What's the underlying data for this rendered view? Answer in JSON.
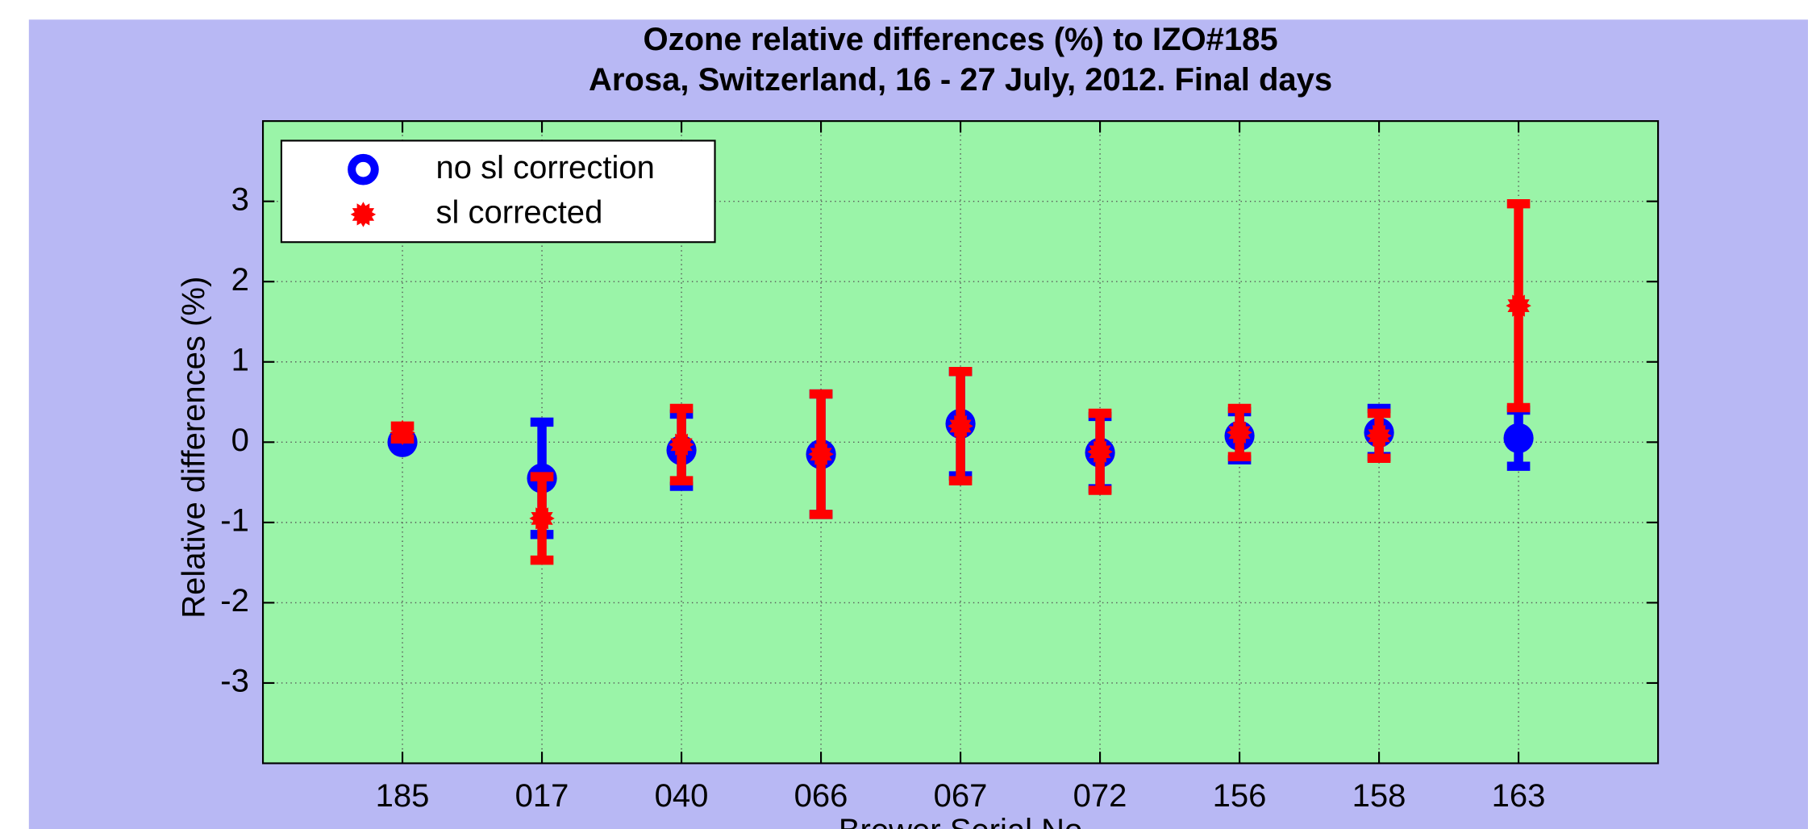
{
  "chart_data": {
    "type": "errorbar",
    "title": "Ozone relative differences (%) to IZO#185",
    "subtitle": "Arosa, Switzerland, 16 - 27 July, 2012. Final days",
    "x_label": "Brewer Serial No",
    "y_label": "Relative differences (%)",
    "categories": [
      "185",
      "017",
      "040",
      "066",
      "067",
      "072",
      "156",
      "158",
      "163"
    ],
    "xlim": [
      0,
      10
    ],
    "ylim": [
      -4,
      4
    ],
    "yticks": [
      -3,
      -2,
      -1,
      0,
      1,
      2,
      3
    ],
    "grid": true,
    "legend": "upper left",
    "background": "#b8b8f4",
    "plot_background": "#9af4a8",
    "series": [
      {
        "name": "no sl correction",
        "color": "#0000ff",
        "marker": "circle",
        "values": [
          0,
          -0.45,
          -0.1,
          -0.15,
          0.23,
          -0.13,
          0.08,
          0.12,
          0.05
        ],
        "errors": [
          0,
          0.7,
          0.45,
          0.75,
          0.65,
          0.45,
          0.3,
          0.3,
          0.35
        ]
      },
      {
        "name": "sl corrected",
        "color": "#ff0000",
        "marker": "star",
        "values": [
          0.12,
          -0.95,
          -0.03,
          -0.15,
          0.2,
          -0.12,
          0.12,
          0.08,
          1.7
        ],
        "errors": [
          0.08,
          0.52,
          0.45,
          0.75,
          0.68,
          0.48,
          0.3,
          0.28,
          1.27
        ]
      }
    ]
  }
}
